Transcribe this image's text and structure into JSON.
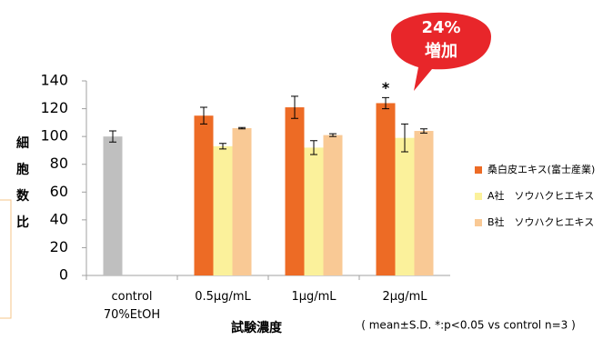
{
  "chart_data": {
    "type": "bar",
    "categories": [
      "control\n70%EtOH",
      "0.5µg/mL",
      "1µg/mL",
      "2µg/mL"
    ],
    "series": [
      {
        "color": "#bfbfbf",
        "values": [
          100,
          null,
          null,
          null
        ],
        "errors": [
          4,
          null,
          null,
          null
        ]
      },
      {
        "name": "桑白皮エキス(富士産業)",
        "color": "#ed6b25",
        "values": [
          null,
          115,
          121,
          124
        ],
        "errors": [
          null,
          6,
          8,
          4
        ]
      },
      {
        "name": "A社　ソウハクヒエキス",
        "color": "#fbf19b",
        "values": [
          null,
          93,
          92,
          99
        ],
        "errors": [
          null,
          2,
          5,
          10
        ]
      },
      {
        "name": "B社　ソウハクヒエキス",
        "color": "#f9c995",
        "values": [
          null,
          106,
          101,
          104
        ],
        "errors": [
          null,
          0.5,
          1,
          1.5
        ]
      }
    ],
    "ylim": [
      0,
      140
    ],
    "yticks": [
      0,
      20,
      40,
      60,
      80,
      100,
      120,
      140
    ],
    "y_label": [
      "細",
      "胞",
      "数",
      "比"
    ],
    "x_label": "試験濃度",
    "note": "( mean±S.D. *:p<0.05 vs control n=3 )",
    "significance": {
      "label": "*",
      "category": 3,
      "series": 1
    },
    "callout": [
      "24%",
      "増加"
    ],
    "legend": "right",
    "grid": false
  }
}
